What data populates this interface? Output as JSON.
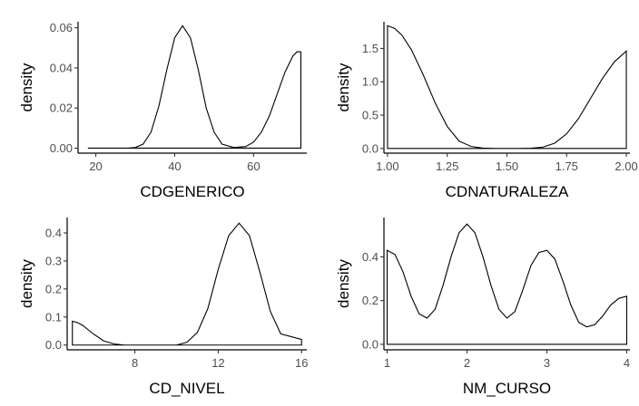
{
  "chart_data": [
    {
      "type": "area",
      "xlabel": "CDGENERICO",
      "ylabel": "density",
      "xlim": [
        15.5,
        73.5
      ],
      "ylim": [
        -0.0025,
        0.063
      ],
      "xticks": [
        20,
        40,
        60
      ],
      "xtick_labels": [
        "20",
        "40",
        "60"
      ],
      "yticks": [
        0.0,
        0.02,
        0.04,
        0.06
      ],
      "ytick_labels": [
        "0.00",
        "0.02",
        "0.04",
        "0.06"
      ],
      "x_range": [
        18,
        72
      ],
      "x": [
        18,
        28,
        30,
        32,
        34,
        36,
        38,
        40,
        42,
        44,
        46,
        48,
        50,
        52,
        55,
        58,
        60,
        62,
        64,
        66,
        68,
        70,
        71,
        72
      ],
      "y": [
        0.0,
        0.0,
        0.0003,
        0.002,
        0.008,
        0.021,
        0.039,
        0.055,
        0.061,
        0.055,
        0.039,
        0.02,
        0.008,
        0.002,
        0.0003,
        0.0008,
        0.003,
        0.008,
        0.016,
        0.027,
        0.038,
        0.046,
        0.048,
        0.048
      ]
    },
    {
      "type": "area",
      "xlabel": "CDNATURALEZA",
      "ylabel": "density",
      "xlim": [
        0.985,
        2.015
      ],
      "ylim": [
        -0.07,
        1.9
      ],
      "xticks": [
        1.0,
        1.25,
        1.5,
        1.75,
        2.0
      ],
      "xtick_labels": [
        "1.00",
        "1.25",
        "1.50",
        "1.75",
        "2.00"
      ],
      "yticks": [
        0.0,
        0.5,
        1.0,
        1.5
      ],
      "ytick_labels": [
        "0.0",
        "0.5",
        "1.0",
        "1.5"
      ],
      "x_range": [
        1.0,
        2.0
      ],
      "x": [
        1.0,
        1.03,
        1.06,
        1.1,
        1.15,
        1.2,
        1.25,
        1.3,
        1.35,
        1.4,
        1.45,
        1.5,
        1.55,
        1.6,
        1.65,
        1.7,
        1.75,
        1.8,
        1.85,
        1.9,
        1.95,
        2.0
      ],
      "y": [
        1.84,
        1.8,
        1.7,
        1.48,
        1.1,
        0.68,
        0.33,
        0.11,
        0.03,
        0.005,
        0.0,
        0.0,
        0.0,
        0.004,
        0.02,
        0.08,
        0.22,
        0.45,
        0.75,
        1.05,
        1.3,
        1.46
      ]
    },
    {
      "type": "area",
      "xlabel": "CD_NIVEL",
      "ylabel": "density",
      "xlim": [
        4.75,
        16.25
      ],
      "ylim": [
        -0.017,
        0.455
      ],
      "xticks": [
        8,
        12,
        16
      ],
      "xtick_labels": [
        "8",
        "12",
        "16"
      ],
      "yticks": [
        0.0,
        0.1,
        0.2,
        0.3,
        0.4
      ],
      "ytick_labels": [
        "0.0",
        "0.1",
        "0.2",
        "0.3",
        "0.4"
      ],
      "x_range": [
        5,
        16
      ],
      "x": [
        5,
        5.25,
        5.5,
        6,
        6.5,
        7,
        7.5,
        8,
        10,
        10.5,
        11,
        11.5,
        12,
        12.5,
        13,
        13.5,
        14,
        14.5,
        15,
        16
      ],
      "y": [
        0.085,
        0.08,
        0.07,
        0.04,
        0.015,
        0.004,
        0.0,
        0.0,
        0.0,
        0.01,
        0.045,
        0.13,
        0.27,
        0.39,
        0.435,
        0.39,
        0.26,
        0.12,
        0.04,
        0.02
      ]
    },
    {
      "type": "area",
      "xlabel": "NM_CURSO",
      "ylabel": "density",
      "xlim": [
        0.96,
        4.04
      ],
      "ylim": [
        -0.025,
        0.58
      ],
      "xticks": [
        1,
        2,
        3,
        4
      ],
      "xtick_labels": [
        "1",
        "2",
        "3",
        "4"
      ],
      "yticks": [
        0.0,
        0.2,
        0.4
      ],
      "ytick_labels": [
        "0.0",
        "0.2",
        "0.4"
      ],
      "x_range": [
        1,
        4
      ],
      "x": [
        1.0,
        1.1,
        1.2,
        1.3,
        1.4,
        1.5,
        1.6,
        1.7,
        1.8,
        1.9,
        2.0,
        2.1,
        2.2,
        2.3,
        2.4,
        2.5,
        2.6,
        2.7,
        2.8,
        2.9,
        3.0,
        3.1,
        3.2,
        3.3,
        3.4,
        3.5,
        3.6,
        3.7,
        3.8,
        3.9,
        4.0
      ],
      "y": [
        0.43,
        0.41,
        0.33,
        0.22,
        0.14,
        0.12,
        0.16,
        0.27,
        0.4,
        0.51,
        0.55,
        0.51,
        0.4,
        0.27,
        0.16,
        0.12,
        0.15,
        0.25,
        0.36,
        0.42,
        0.43,
        0.39,
        0.29,
        0.18,
        0.1,
        0.08,
        0.09,
        0.13,
        0.18,
        0.21,
        0.22
      ]
    }
  ]
}
